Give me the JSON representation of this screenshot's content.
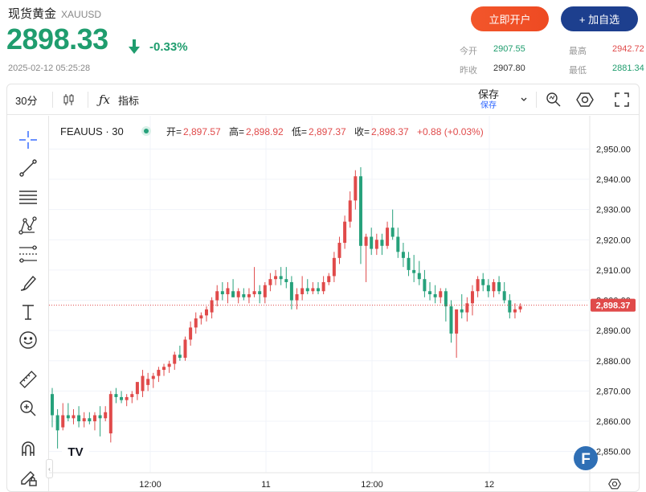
{
  "header": {
    "title": "现货黄金",
    "symbol": "XAUUSD",
    "price": "2898.33",
    "change": "-0.33%",
    "timestamp": "2025-02-12 05:25:28",
    "open_account_label": "立即开户",
    "add_watchlist_label": "+ 加自选"
  },
  "stats": {
    "open_label": "今开",
    "open_value": "2907.55",
    "prev_close_label": "昨收",
    "prev_close_value": "2907.80",
    "high_label": "最高",
    "high_value": "2942.72",
    "low_label": "最低",
    "low_value": "2881.34"
  },
  "toolbar": {
    "interval": "30分",
    "indicators_label": "指标",
    "save_label": "保存",
    "save_sub_label": "保存"
  },
  "legend": {
    "symbol": "FEAUUS · 30",
    "o_label": "开=",
    "o_value": "2,897.57",
    "h_label": "高=",
    "h_value": "2,898.92",
    "l_label": "低=",
    "l_value": "2,897.37",
    "c_label": "收=",
    "c_value": "2,898.37",
    "change": "+0.88 (+0.03%)"
  },
  "current_price_label": "2,898.37",
  "left_tools": [
    "crosshair-icon",
    "trendline-icon",
    "horizontal-lines-icon",
    "pattern-icon",
    "fib-icon",
    "brush-icon",
    "text-tool-icon",
    "emoji-icon",
    "ruler-icon",
    "zoom-in-icon",
    "magnet-icon",
    "lock-draw-icon"
  ],
  "colors": {
    "up": "#e04a4a",
    "down": "#26a17b",
    "accent": "#1f9d6e",
    "brand": "#1d3f8e",
    "open_btn": "#f2562b"
  },
  "chart_data": {
    "type": "candlestick",
    "y_ticks": [
      "2,950.00",
      "2,940.00",
      "2,930.00",
      "2,920.00",
      "2,910.00",
      "2,900.00",
      "2,890.00",
      "2,880.00",
      "2,870.00",
      "2,860.00",
      "2,850.00"
    ],
    "ylim": [
      2843,
      2961
    ],
    "x_ticks": [
      "12:00",
      "11",
      "12:00",
      "12"
    ],
    "grid": true,
    "current_price": 2898.37,
    "candles": [
      [
        2869,
        2871,
        2858,
        2862
      ],
      [
        2862,
        2864,
        2851,
        2857
      ],
      [
        2858,
        2866,
        2857,
        2862
      ],
      [
        2862,
        2866,
        2860,
        2861
      ],
      [
        2861,
        2864,
        2859,
        2862
      ],
      [
        2862,
        2865,
        2858,
        2860
      ],
      [
        2860,
        2863,
        2858,
        2861
      ],
      [
        2861,
        2863,
        2859,
        2860
      ],
      [
        2860,
        2863,
        2857,
        2862
      ],
      [
        2862,
        2865,
        2855,
        2861
      ],
      [
        2861,
        2865,
        2860,
        2863
      ],
      [
        2856,
        2870,
        2853,
        2869
      ],
      [
        2869,
        2871,
        2866,
        2868
      ],
      [
        2868,
        2870,
        2866,
        2867
      ],
      [
        2867,
        2869,
        2865,
        2868
      ],
      [
        2868,
        2870,
        2866,
        2869
      ],
      [
        2869,
        2872,
        2867,
        2873
      ],
      [
        2870,
        2877,
        2868,
        2875
      ],
      [
        2872,
        2876,
        2870,
        2874
      ],
      [
        2874,
        2876,
        2871,
        2875
      ],
      [
        2875,
        2878,
        2873,
        2877
      ],
      [
        2877,
        2879,
        2875,
        2878
      ],
      [
        2878,
        2880,
        2876,
        2879
      ],
      [
        2879,
        2883,
        2877,
        2882
      ],
      [
        2882,
        2885,
        2880,
        2881
      ],
      [
        2881,
        2888,
        2880,
        2887
      ],
      [
        2887,
        2893,
        2885,
        2891
      ],
      [
        2891,
        2896,
        2889,
        2894
      ],
      [
        2894,
        2896,
        2892,
        2895
      ],
      [
        2895,
        2898,
        2893,
        2897
      ],
      [
        2896,
        2901,
        2894,
        2900
      ],
      [
        2900,
        2905,
        2898,
        2903
      ],
      [
        2903,
        2906,
        2900,
        2902
      ],
      [
        2902,
        2906,
        2899,
        2904
      ],
      [
        2903,
        2907,
        2901,
        2901
      ],
      [
        2901,
        2904,
        2899,
        2903
      ],
      [
        2902,
        2904,
        2900,
        2901
      ],
      [
        2901,
        2904,
        2899,
        2902
      ],
      [
        2902,
        2911,
        2901,
        2903
      ],
      [
        2903,
        2905,
        2899,
        2902
      ],
      [
        2901,
        2906,
        2899,
        2905
      ],
      [
        2905,
        2909,
        2903,
        2907
      ],
      [
        2907,
        2910,
        2905,
        2908
      ],
      [
        2908,
        2911,
        2905,
        2907
      ],
      [
        2907,
        2911,
        2904,
        2906
      ],
      [
        2906,
        2908,
        2897,
        2900
      ],
      [
        2900,
        2904,
        2897,
        2902
      ],
      [
        2902,
        2908,
        2900,
        2904
      ],
      [
        2904,
        2907,
        2902,
        2903
      ],
      [
        2903,
        2906,
        2902,
        2904
      ],
      [
        2904,
        2906,
        2902,
        2903
      ],
      [
        2903,
        2908,
        2902,
        2906
      ],
      [
        2906,
        2909,
        2905,
        2908
      ],
      [
        2908,
        2916,
        2906,
        2914
      ],
      [
        2914,
        2921,
        2912,
        2919
      ],
      [
        2919,
        2928,
        2917,
        2926
      ],
      [
        2926,
        2936,
        2924,
        2933
      ],
      [
        2933,
        2943,
        2930,
        2941
      ],
      [
        2941,
        2944,
        2912,
        2918
      ],
      [
        2918,
        2922,
        2906,
        2921
      ],
      [
        2921,
        2924,
        2915,
        2917
      ],
      [
        2917,
        2922,
        2915,
        2920
      ],
      [
        2920,
        2922,
        2915,
        2918
      ],
      [
        2918,
        2926,
        2917,
        2924
      ],
      [
        2924,
        2930,
        2920,
        2921
      ],
      [
        2921,
        2924,
        2914,
        2916
      ],
      [
        2916,
        2919,
        2911,
        2914
      ],
      [
        2914,
        2916,
        2908,
        2910
      ],
      [
        2910,
        2915,
        2906,
        2909
      ],
      [
        2909,
        2913,
        2905,
        2907
      ],
      [
        2907,
        2910,
        2901,
        2903
      ],
      [
        2903,
        2906,
        2900,
        2902
      ],
      [
        2902,
        2905,
        2899,
        2901
      ],
      [
        2901,
        2904,
        2899,
        2903
      ],
      [
        2903,
        2904,
        2893,
        2898
      ],
      [
        2898,
        2900,
        2886,
        2889
      ],
      [
        2889,
        2896,
        2881,
        2897
      ],
      [
        2897,
        2902,
        2894,
        2896
      ],
      [
        2896,
        2901,
        2893,
        2899
      ],
      [
        2899,
        2905,
        2895,
        2903
      ],
      [
        2903,
        2908,
        2901,
        2907
      ],
      [
        2907,
        2909,
        2903,
        2905
      ],
      [
        2905,
        2907,
        2901,
        2903
      ],
      [
        2903,
        2907,
        2901,
        2906
      ],
      [
        2906,
        2908,
        2902,
        2903
      ],
      [
        2903,
        2906,
        2899,
        2900
      ],
      [
        2900,
        2902,
        2894,
        2896
      ],
      [
        2896,
        2899,
        2894,
        2897
      ],
      [
        2897,
        2899,
        2896,
        2898
      ]
    ]
  }
}
